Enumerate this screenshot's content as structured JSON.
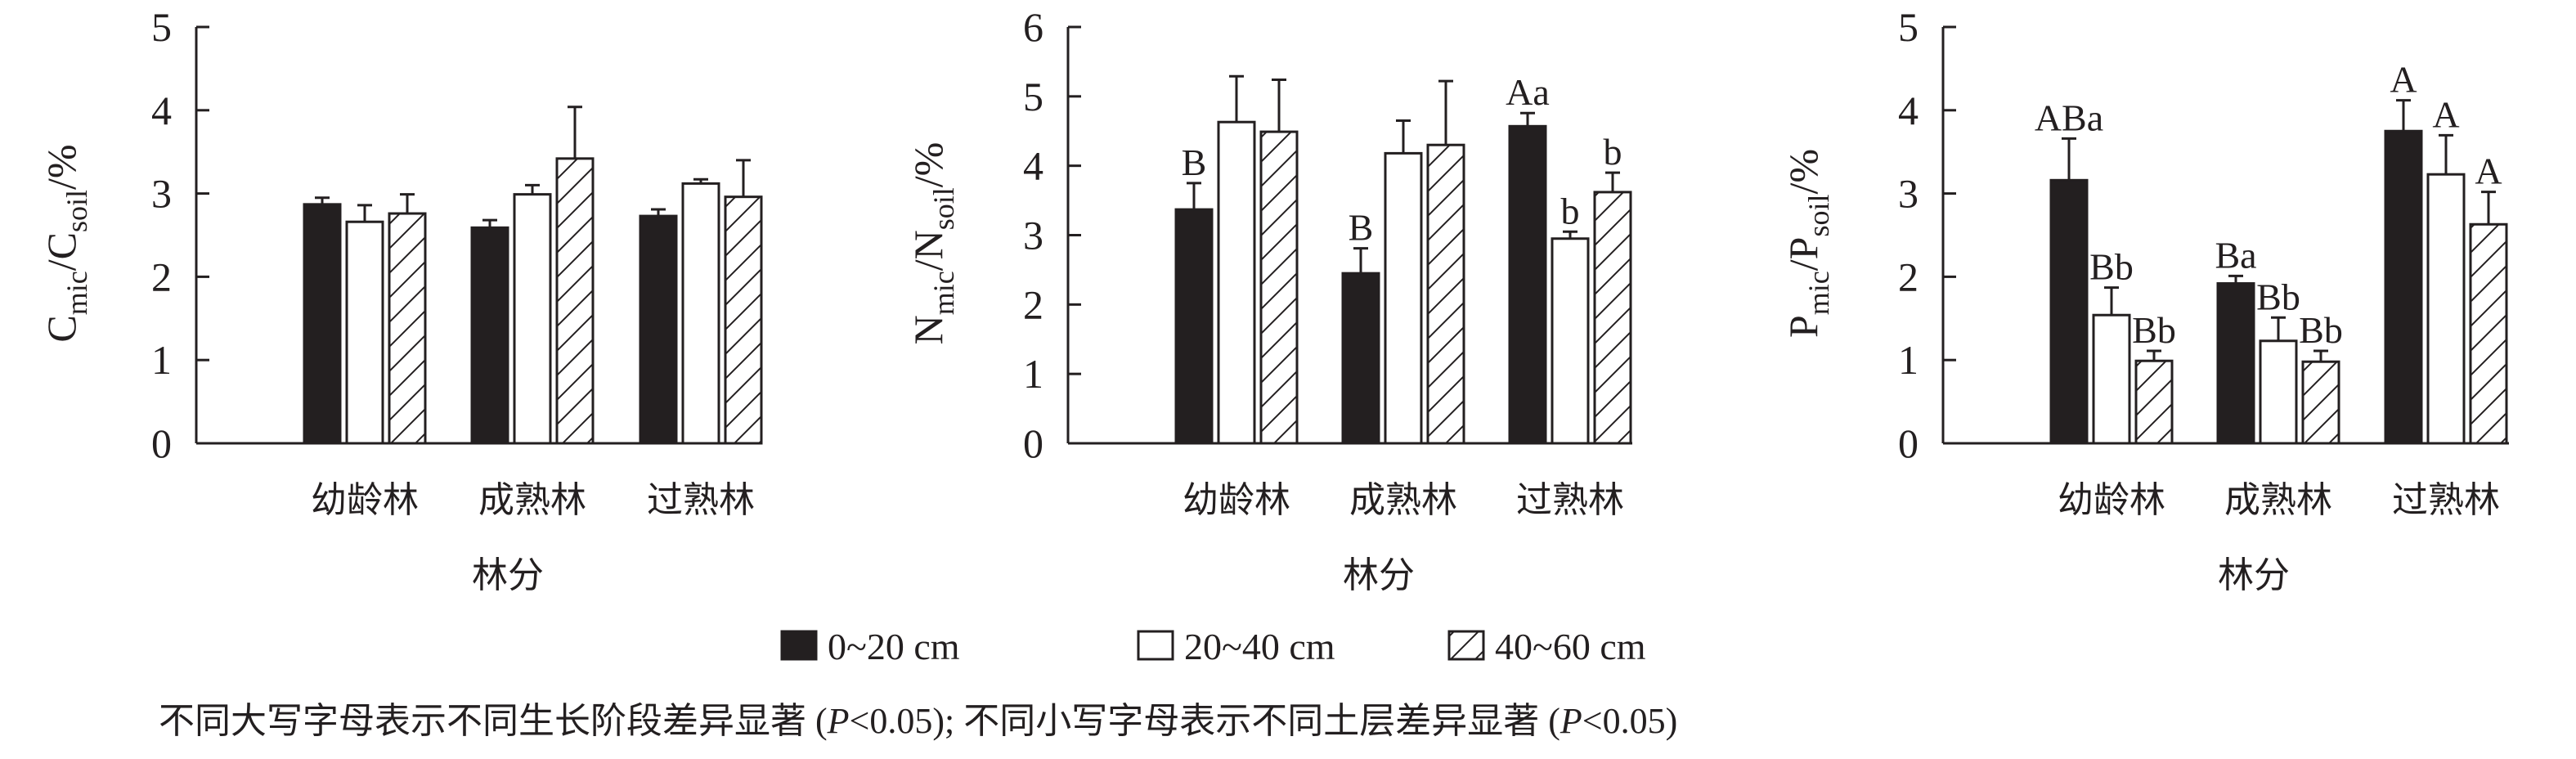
{
  "chart_data": [
    {
      "type": "bar",
      "ylabel_main": "C",
      "ylabel_sub1": "mic",
      "ylabel_sep": "/C",
      "ylabel_sub2": "soil",
      "ylabel_unit": "/%",
      "xlabel": "林分",
      "categories": [
        "幼龄林",
        "成熟林",
        "过熟林"
      ],
      "ylim": [
        0,
        5
      ],
      "yticks": [
        "0",
        "1",
        "2",
        "3",
        "4",
        "5"
      ],
      "series": [
        {
          "name": "0~20 cm",
          "values": [
            2.87,
            2.59,
            2.73
          ],
          "errors": [
            0.08,
            0.09,
            0.08
          ],
          "labels": [
            "",
            "",
            ""
          ]
        },
        {
          "name": "20~40 cm",
          "values": [
            2.66,
            2.99,
            3.12
          ],
          "errors": [
            0.2,
            0.11,
            0.05
          ],
          "labels": [
            "",
            "",
            ""
          ]
        },
        {
          "name": "40~60 cm",
          "values": [
            2.76,
            3.42,
            2.96
          ],
          "errors": [
            0.23,
            0.62,
            0.44
          ],
          "labels": [
            "",
            "",
            ""
          ]
        }
      ]
    },
    {
      "type": "bar",
      "ylabel_main": "N",
      "ylabel_sub1": "mic",
      "ylabel_sep": "/N",
      "ylabel_sub2": "soil",
      "ylabel_unit": "/%",
      "xlabel": "林分",
      "categories": [
        "幼龄林",
        "成熟林",
        "过熟林"
      ],
      "ylim": [
        0,
        6
      ],
      "yticks": [
        "0",
        "1",
        "2",
        "3",
        "4",
        "5",
        "6"
      ],
      "series": [
        {
          "name": "0~20 cm",
          "values": [
            3.37,
            2.45,
            4.57
          ],
          "errors": [
            0.38,
            0.36,
            0.19
          ],
          "labels": [
            "B",
            "B",
            "Aa"
          ]
        },
        {
          "name": "20~40 cm",
          "values": [
            4.63,
            4.18,
            2.95
          ],
          "errors": [
            0.66,
            0.47,
            0.1
          ],
          "labels": [
            "",
            "",
            "b"
          ]
        },
        {
          "name": "40~60 cm",
          "values": [
            4.49,
            4.3,
            3.62
          ],
          "errors": [
            0.75,
            0.92,
            0.28
          ],
          "labels": [
            "",
            "",
            "b"
          ]
        }
      ]
    },
    {
      "type": "bar",
      "ylabel_main": "P",
      "ylabel_sub1": "mic",
      "ylabel_sep": "/P",
      "ylabel_sub2": "soil",
      "ylabel_unit": "/%",
      "xlabel": "林分",
      "categories": [
        "幼龄林",
        "成熟林",
        "过熟林"
      ],
      "ylim": [
        0,
        5
      ],
      "yticks": [
        "0",
        "1",
        "2",
        "3",
        "4",
        "5"
      ],
      "series": [
        {
          "name": "0~20 cm",
          "values": [
            3.16,
            1.92,
            3.75
          ],
          "errors": [
            0.5,
            0.09,
            0.37
          ],
          "labels": [
            "ABa",
            "Ba",
            "A"
          ]
        },
        {
          "name": "20~40 cm",
          "values": [
            1.54,
            1.23,
            3.23
          ],
          "errors": [
            0.33,
            0.28,
            0.47
          ],
          "labels": [
            "Bb",
            "Bb",
            "A"
          ]
        },
        {
          "name": "40~60 cm",
          "values": [
            0.99,
            0.98,
            2.63
          ],
          "errors": [
            0.12,
            0.13,
            0.39
          ],
          "labels": [
            "Bb",
            "Bb",
            "A"
          ]
        }
      ]
    }
  ],
  "legend": [
    {
      "label": "0~20 cm",
      "fill": "solid"
    },
    {
      "label": "20~40 cm",
      "fill": "empty"
    },
    {
      "label": "40~60 cm",
      "fill": "hatch"
    }
  ],
  "caption": {
    "part1": "不同大写字母表示不同生长阶段差异显著 (",
    "p1": "P",
    "part2": "<0.05); 不同小写字母表示不同土层差异显著 (",
    "p2": "P",
    "part3": "<0.05)"
  },
  "colors": {
    "ink": "#231f20",
    "background": "#ffffff"
  }
}
